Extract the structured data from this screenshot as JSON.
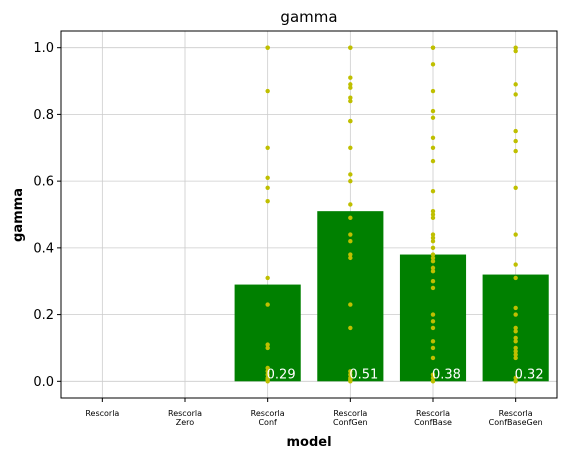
{
  "chart_data": {
    "type": "bar",
    "title": "gamma",
    "xlabel": "model",
    "ylabel": "gamma",
    "ylim": [
      -0.05,
      1.05
    ],
    "yticks": [
      "0.0",
      "0.2",
      "0.4",
      "0.6",
      "0.8",
      "1.0"
    ],
    "grid": true,
    "categories": [
      [
        "Rescorla"
      ],
      [
        "Rescorla",
        "Zero"
      ],
      [
        "Rescorla",
        "Conf"
      ],
      [
        "Rescorla",
        "ConfGen"
      ],
      [
        "Rescorla",
        "ConfBase"
      ],
      [
        "Rescorla",
        "ConfBaseGen"
      ]
    ],
    "values": [
      null,
      null,
      0.29,
      0.51,
      0.38,
      0.32
    ],
    "value_labels": [
      "",
      "",
      "0.29",
      "0.51",
      "0.38",
      "0.32"
    ],
    "bar_color": "#008000",
    "point_color": "#bfbf00",
    "points": [
      [],
      [],
      [
        1.0,
        1.0,
        0.87,
        0.7,
        0.61,
        0.58,
        0.54,
        0.31,
        0.23,
        0.11,
        0.1,
        0.04,
        0.03,
        0.02,
        0.01,
        0.005,
        0.0
      ],
      [
        1.0,
        1.0,
        0.91,
        0.89,
        0.88,
        0.85,
        0.84,
        0.78,
        0.78,
        0.7,
        0.62,
        0.6,
        0.53,
        0.49,
        0.44,
        0.42,
        0.38,
        0.37,
        0.23,
        0.16,
        0.03,
        0.02,
        0.01,
        0.005,
        0.0
      ],
      [
        1.0,
        1.0,
        0.95,
        0.87,
        0.81,
        0.79,
        0.73,
        0.7,
        0.66,
        0.57,
        0.51,
        0.5,
        0.49,
        0.44,
        0.43,
        0.42,
        0.4,
        0.38,
        0.37,
        0.36,
        0.34,
        0.33,
        0.3,
        0.28,
        0.2,
        0.18,
        0.16,
        0.12,
        0.1,
        0.07,
        0.02,
        0.01,
        0.0
      ],
      [
        1.0,
        0.99,
        0.89,
        0.86,
        0.75,
        0.72,
        0.69,
        0.58,
        0.44,
        0.35,
        0.31,
        0.22,
        0.2,
        0.16,
        0.15,
        0.13,
        0.12,
        0.1,
        0.09,
        0.08,
        0.07,
        0.01,
        0.0
      ]
    ]
  }
}
